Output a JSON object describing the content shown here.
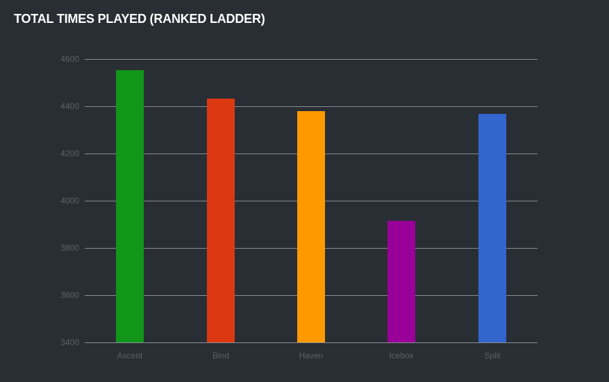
{
  "title": "TOTAL TIMES PLAYED (RANKED LADDER)",
  "chart_data": {
    "type": "bar",
    "title": "TOTAL TIMES PLAYED (RANKED LADDER)",
    "xlabel": "",
    "ylabel": "",
    "categories": [
      "Ascent",
      "Bind",
      "Haven",
      "Icebox",
      "Split"
    ],
    "values": [
      4553,
      4431,
      4378,
      3915,
      4368
    ],
    "colors": [
      "#11961a",
      "#dc3912",
      "#ff9900",
      "#990099",
      "#3366cc"
    ],
    "ylim": [
      3400,
      4600
    ],
    "yticks": [
      3400,
      3600,
      3800,
      4000,
      4200,
      4400,
      4600
    ],
    "grid": true,
    "legend": "none"
  },
  "axis": {
    "yticks": [
      "4600",
      "4400",
      "4200",
      "4000",
      "3800",
      "3600",
      "3400"
    ],
    "xlabels": [
      "Ascent",
      "Bind",
      "Haven",
      "Icebox",
      "Split"
    ]
  }
}
